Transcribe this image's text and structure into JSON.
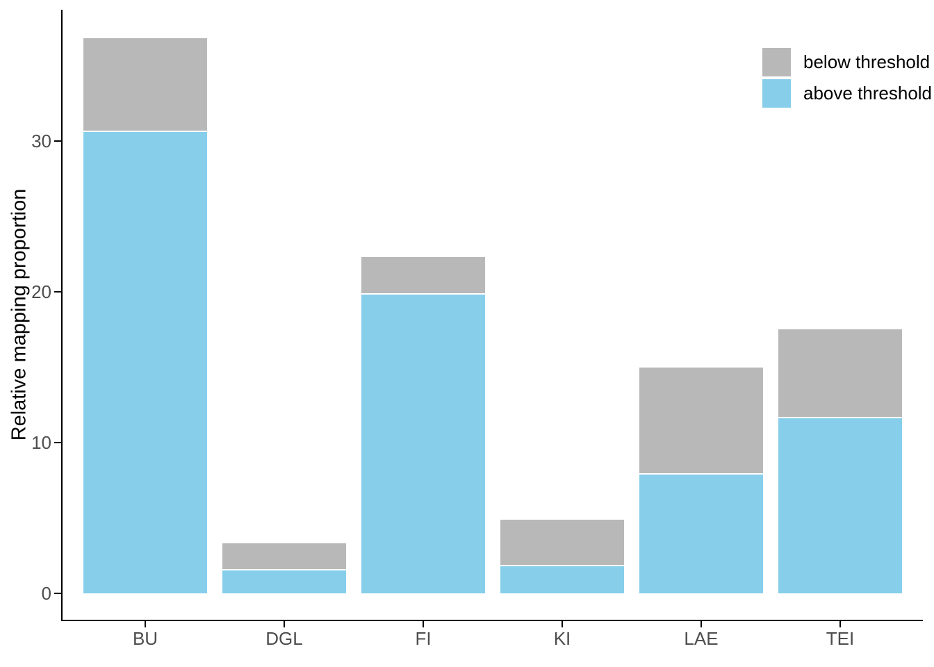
{
  "chart_data": {
    "type": "bar",
    "stacked": true,
    "title": "",
    "xlabel": "",
    "ylabel": "Relative mapping proportion",
    "categories": [
      "BU",
      "DGL",
      "FI",
      "KI",
      "LAE",
      "TEI"
    ],
    "series": [
      {
        "name": "above threshold",
        "color": "#87CEEB",
        "values": [
          30.6,
          1.5,
          19.8,
          1.8,
          7.9,
          11.6
        ]
      },
      {
        "name": "below threshold",
        "color": "#B8B8B8",
        "values": [
          6.2,
          1.8,
          2.5,
          3.1,
          7.1,
          5.9
        ]
      }
    ],
    "y_ticks": [
      0,
      10,
      20,
      30
    ],
    "ylim": [
      0,
      38.7
    ],
    "grid": false,
    "legend": {
      "position": "top-right",
      "items": [
        {
          "label": "below threshold",
          "color": "#B8B8B8"
        },
        {
          "label": "above threshold",
          "color": "#87CEEB"
        }
      ]
    }
  }
}
